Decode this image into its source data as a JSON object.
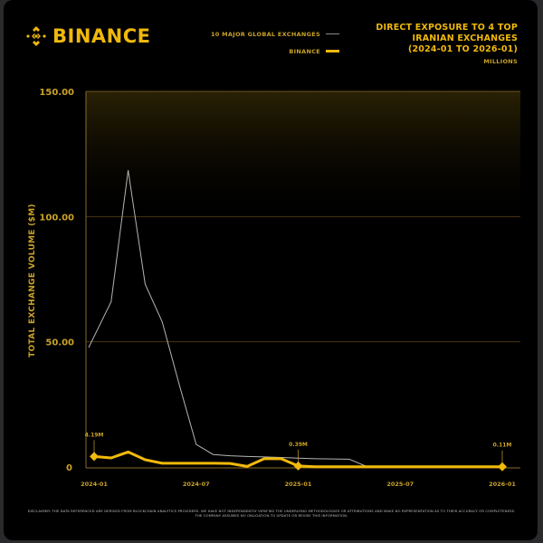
{
  "brand": {
    "name": "BINANCE",
    "color": "#F0B90B"
  },
  "legend": {
    "items": [
      {
        "label": "10 MAJOR GLOBAL EXCHANGES",
        "color": "#b5b5b5"
      },
      {
        "label": "BINANCE",
        "color": "#F0B90B"
      }
    ]
  },
  "title": {
    "lines": [
      "DIRECT EXPOSURE TO 4 TOP",
      "IRANIAN EXCHANGES",
      "(2024-01 TO 2026-01)"
    ],
    "units": "MILLIONS"
  },
  "disclaimer": "DISCLAIMER: THE DATA REFERENCED ARE DERIVED FROM BLOCKCHAIN ANALYTICS PROVIDERS. WE HAVE NOT INDEPENDENTLY VERIFIED THE UNDERLYING METHODOLOGIES OR ATTRIBUTIONS AND MAKE NO REPRESENTATION AS TO THEIR ACCURACY OR COMPLETENESS. THE COMPANY ASSUMES NO OBLIGATION TO UPDATE OR REVISE THIS INFORMATION.",
  "chart_data": {
    "type": "line",
    "title": "DIRECT EXPOSURE TO 4 TOP IRANIAN EXCHANGES (2024-01 TO 2026-01)",
    "subtitle": "MILLIONS",
    "xlabel": "",
    "ylabel": "TOTAL EXCHANGE VOLUME ($M)",
    "ylim": [
      0,
      150
    ],
    "yticks": [
      0,
      50,
      100,
      150
    ],
    "ytick_labels": [
      "0",
      "50.00",
      "100.00",
      "150.00"
    ],
    "xtick_labels": [
      "2024-01",
      "2024-07",
      "2025-01",
      "2025-07",
      "2026-01"
    ],
    "grid": "horizontal",
    "legend_position": "top-center",
    "x": [
      "2024-01",
      "2024-02",
      "2024-03",
      "2024-04",
      "2024-05",
      "2024-06",
      "2024-07",
      "2024-08",
      "2024-09",
      "2024-10",
      "2024-11",
      "2024-12",
      "2025-01",
      "2025-02",
      "2025-03",
      "2025-04",
      "2025-05",
      "2025-06",
      "2025-07",
      "2025-08",
      "2025-09",
      "2025-10",
      "2025-11",
      "2025-12",
      "2026-01"
    ],
    "series": [
      {
        "name": "10 MAJOR GLOBAL EXCHANGES",
        "color": "#b5b5b5",
        "values": [
          47.7,
          66,
          118.5,
          73,
          58,
          33,
          9,
          5,
          4.5,
          4.2,
          4,
          3.8,
          3.5,
          3.3,
          3.2,
          3.1,
          0.3,
          0.2,
          0.2,
          0.2,
          0.2,
          0.2,
          0.2,
          0.2,
          0.2
        ]
      },
      {
        "name": "BINANCE",
        "color": "#F0B90B",
        "values": [
          4.19,
          3.6,
          6.0,
          2.9,
          1.5,
          1.5,
          1.5,
          1.5,
          1.4,
          0.2,
          3.3,
          3.3,
          0.39,
          0.1,
          0.1,
          0.1,
          0.1,
          0.1,
          0.1,
          0.1,
          0.1,
          0.1,
          0.1,
          0.1,
          0.11
        ]
      }
    ],
    "annotations": [
      {
        "x": "2024-01",
        "series": "BINANCE",
        "label": "4.19M"
      },
      {
        "x": "2025-01",
        "series": "BINANCE",
        "label": "0.39M"
      },
      {
        "x": "2026-01",
        "series": "BINANCE",
        "label": "0.11M"
      }
    ]
  }
}
